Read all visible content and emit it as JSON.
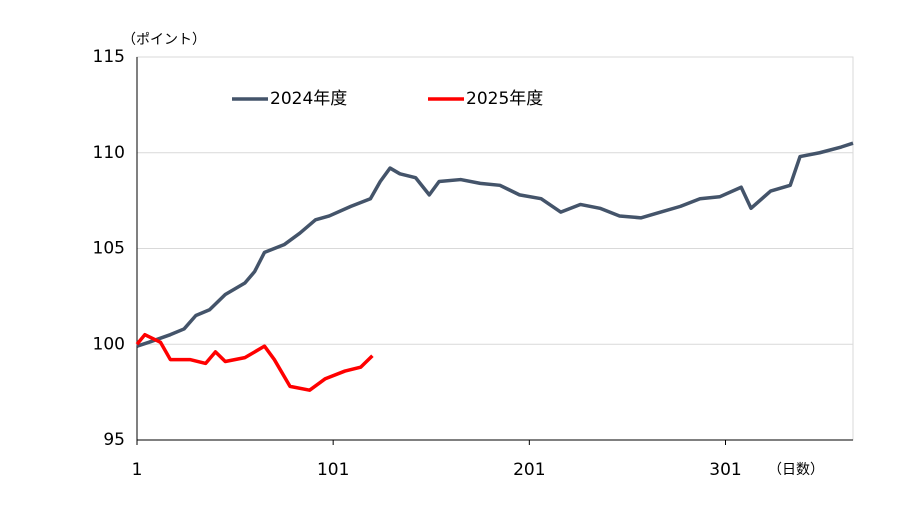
{
  "chart_data": {
    "type": "line",
    "y_label": "（ポイント）",
    "x_label": "（日数）",
    "xlim": [
      1,
      366
    ],
    "xticks": [
      1,
      101,
      201,
      301
    ],
    "ylim": [
      95,
      115
    ],
    "yticks": [
      95,
      100,
      105,
      110,
      115
    ],
    "grid": true,
    "legend": "top",
    "series": [
      {
        "name": "2024年度",
        "color": "#44546a",
        "x": [
          1,
          7,
          18,
          25,
          31,
          38,
          46,
          56,
          61,
          66,
          76,
          84,
          92,
          99,
          110,
          120,
          125,
          130,
          135,
          143,
          150,
          155,
          166,
          176,
          186,
          196,
          207,
          217,
          227,
          237,
          247,
          258,
          268,
          278,
          288,
          298,
          309,
          314,
          324,
          334,
          339,
          349,
          360,
          366
        ],
        "values": [
          99.9,
          100.1,
          100.5,
          100.8,
          101.5,
          101.8,
          102.6,
          103.2,
          103.8,
          104.8,
          105.2,
          105.8,
          106.5,
          106.7,
          107.2,
          107.6,
          108.5,
          109.2,
          108.9,
          108.7,
          107.8,
          108.5,
          108.6,
          108.4,
          108.3,
          107.8,
          107.6,
          106.9,
          107.3,
          107.1,
          106.7,
          106.6,
          106.9,
          107.2,
          107.6,
          107.7,
          108.2,
          107.1,
          108.0,
          108.3,
          109.8,
          110.0,
          110.3,
          110.5
        ]
      },
      {
        "name": "2025年度",
        "color": "#ff0000",
        "x": [
          1,
          5,
          13,
          18,
          28,
          36,
          41,
          46,
          56,
          66,
          71,
          79,
          89,
          97,
          107,
          115,
          121
        ],
        "values": [
          100.0,
          100.5,
          100.1,
          99.2,
          99.2,
          99.0,
          99.6,
          99.1,
          99.3,
          99.9,
          99.2,
          97.8,
          97.6,
          98.2,
          98.6,
          98.8,
          99.4
        ]
      }
    ]
  }
}
